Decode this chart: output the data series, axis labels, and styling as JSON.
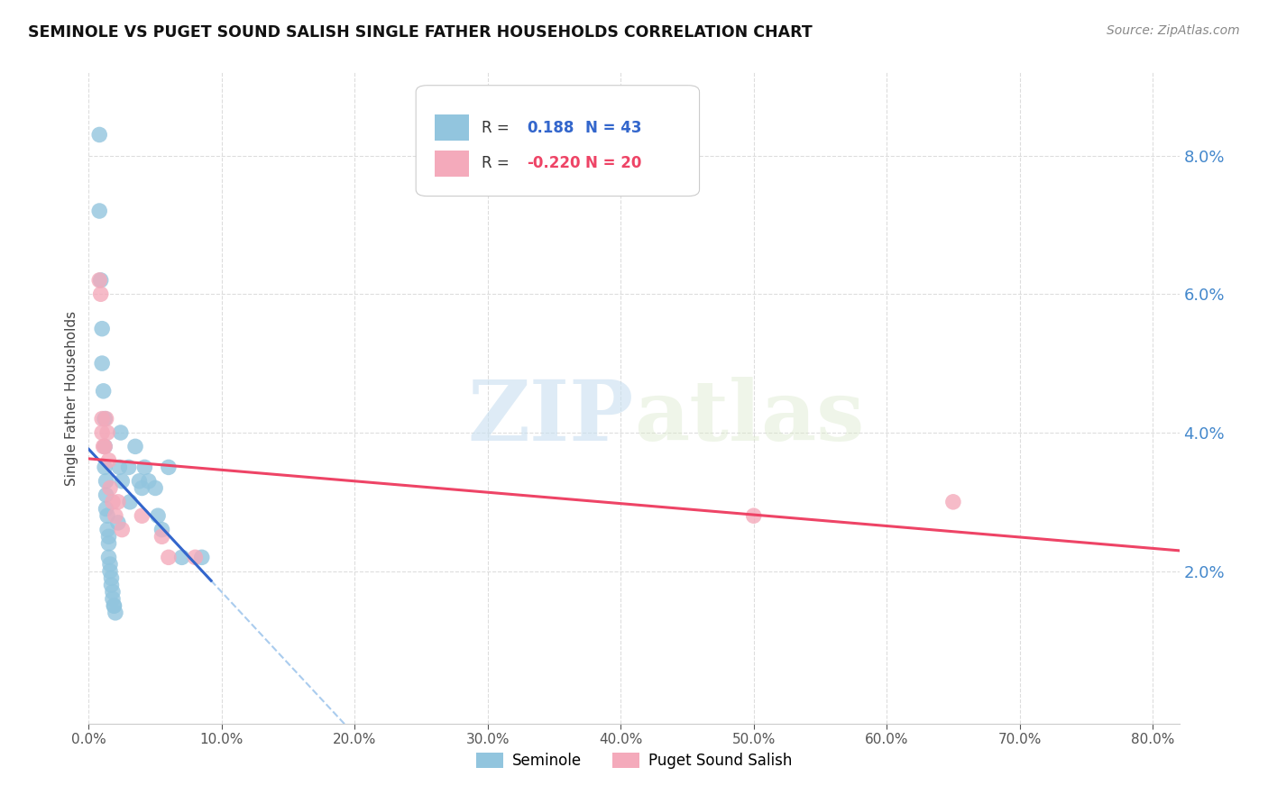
{
  "title": "SEMINOLE VS PUGET SOUND SALISH SINGLE FATHER HOUSEHOLDS CORRELATION CHART",
  "source": "Source: ZipAtlas.com",
  "ylabel": "Single Father Households",
  "ytick_labels": [
    "2.0%",
    "4.0%",
    "6.0%",
    "8.0%"
  ],
  "ytick_values": [
    0.02,
    0.04,
    0.06,
    0.08
  ],
  "xtick_vals": [
    0.0,
    0.1,
    0.2,
    0.3,
    0.4,
    0.5,
    0.6,
    0.7,
    0.8
  ],
  "xtick_labs": [
    "0.0%",
    "10.0%",
    "20.0%",
    "30.0%",
    "40.0%",
    "50.0%",
    "60.0%",
    "70.0%",
    "80.0%"
  ],
  "xlim": [
    0.0,
    0.82
  ],
  "ylim": [
    -0.002,
    0.092
  ],
  "watermark_zip": "ZIP",
  "watermark_atlas": "atlas",
  "seminole_color": "#92C5DE",
  "puget_color": "#F4AABB",
  "seminole_line_color": "#3366CC",
  "puget_line_color": "#EE4466",
  "dashed_line_color": "#AACCEE",
  "background_color": "#FFFFFF",
  "grid_color": "#DDDDDD",
  "r_seminole": 0.188,
  "n_seminole": 43,
  "r_puget": -0.22,
  "n_puget": 20,
  "seminole_x": [
    0.008,
    0.008,
    0.009,
    0.01,
    0.01,
    0.011,
    0.012,
    0.012,
    0.012,
    0.013,
    0.013,
    0.013,
    0.014,
    0.014,
    0.015,
    0.015,
    0.015,
    0.016,
    0.016,
    0.017,
    0.017,
    0.018,
    0.018,
    0.019,
    0.019,
    0.02,
    0.022,
    0.023,
    0.024,
    0.025,
    0.03,
    0.031,
    0.035,
    0.038,
    0.04,
    0.042,
    0.045,
    0.05,
    0.052,
    0.055,
    0.06,
    0.07,
    0.085
  ],
  "seminole_y": [
    0.083,
    0.072,
    0.062,
    0.055,
    0.05,
    0.046,
    0.042,
    0.038,
    0.035,
    0.033,
    0.031,
    0.029,
    0.028,
    0.026,
    0.025,
    0.024,
    0.022,
    0.021,
    0.02,
    0.019,
    0.018,
    0.017,
    0.016,
    0.015,
    0.015,
    0.014,
    0.027,
    0.035,
    0.04,
    0.033,
    0.035,
    0.03,
    0.038,
    0.033,
    0.032,
    0.035,
    0.033,
    0.032,
    0.028,
    0.026,
    0.035,
    0.022,
    0.022
  ],
  "puget_x": [
    0.008,
    0.009,
    0.01,
    0.01,
    0.011,
    0.012,
    0.013,
    0.014,
    0.015,
    0.016,
    0.018,
    0.02,
    0.022,
    0.025,
    0.04,
    0.055,
    0.06,
    0.08,
    0.5,
    0.65
  ],
  "puget_y": [
    0.062,
    0.06,
    0.042,
    0.04,
    0.038,
    0.038,
    0.042,
    0.04,
    0.036,
    0.032,
    0.03,
    0.028,
    0.03,
    0.026,
    0.028,
    0.025,
    0.022,
    0.022,
    0.028,
    0.03
  ]
}
